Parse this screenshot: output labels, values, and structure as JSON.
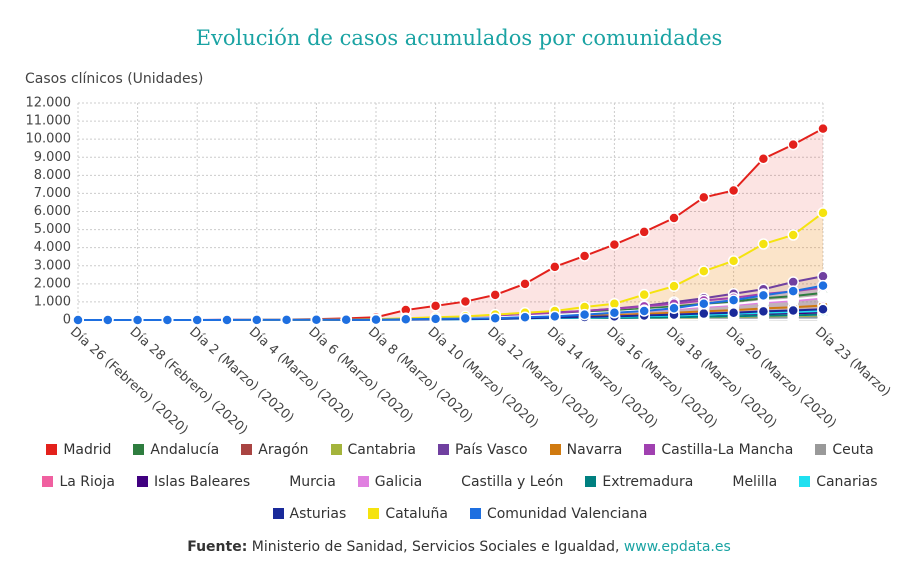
{
  "chart_data": {
    "type": "area",
    "title": "Evolución de casos acumulados por comunidades",
    "y_axis_label": "Casos clínicos (Unidades)",
    "categories": [
      "Día 26 (Febrero) (2020)",
      null,
      "Día 28 (Febrero) (2020)",
      null,
      "Día 2 (Marzo) (2020)",
      null,
      "Día 4 (Marzo) (2020)",
      null,
      "Día 6 (Marzo) (2020)",
      null,
      "Día 8 (Marzo) (2020)",
      null,
      "Día 10 (Marzo) (2020)",
      null,
      "Día 12 (Marzo) (2020)",
      null,
      "Día 14 (Marzo) (2020)",
      null,
      "Día 16 (Marzo) (2020)",
      null,
      "Día 18 (Marzo) (2020)",
      null,
      "Día 20 (Marzo) (2020)",
      null,
      null,
      "Día 23 (Marzo)"
    ],
    "ylim": [
      0,
      12000
    ],
    "yticks": [
      0,
      {
        "value": 1000,
        "label": "1.000"
      },
      {
        "value": 2000,
        "label": "2.000"
      },
      {
        "value": 3000,
        "label": "3.000"
      },
      {
        "value": 4000,
        "label": "4.000"
      },
      {
        "value": 5000,
        "label": "5.000"
      },
      {
        "value": 6000,
        "label": "6.000"
      },
      {
        "value": 7000,
        "label": "7.000"
      },
      {
        "value": 8000,
        "label": "8.000"
      },
      {
        "value": 9000,
        "label": "9.000"
      },
      {
        "value": 10000,
        "label": "10.000"
      },
      {
        "value": 11000,
        "label": "11.000"
      },
      {
        "value": 12000,
        "label": "12.000"
      }
    ],
    "grid": true,
    "series": [
      {
        "name": "Madrid",
        "color": "#e3211c",
        "values": [
          0,
          0,
          0,
          0,
          3,
          10,
          15,
          30,
          50,
          90,
          150,
          550,
          780,
          1020,
          1390,
          2000,
          2940,
          3540,
          4170,
          4870,
          5640,
          6780,
          7160,
          8920,
          9700,
          10580
        ]
      },
      {
        "name": "Andalucía",
        "color": "#2e7d3f",
        "values": [
          0,
          0,
          0,
          0,
          2,
          3,
          5,
          8,
          12,
          18,
          30,
          60,
          90,
          120,
          165,
          240,
          330,
          420,
          510,
          630,
          750,
          900,
          1020,
          1200,
          1320,
          1500
        ]
      },
      {
        "name": "Aragón",
        "color": "#a94442",
        "values": [
          0,
          0,
          0,
          0,
          1,
          1,
          2,
          3,
          4,
          6,
          10,
          20,
          30,
          40,
          55,
          80,
          110,
          140,
          170,
          210,
          250,
          300,
          340,
          400,
          440,
          500
        ]
      },
      {
        "name": "Cantabria",
        "color": "#a4b43c",
        "values": [
          0,
          0,
          0,
          0,
          0,
          1,
          1,
          1,
          2,
          3,
          5,
          10,
          15,
          20,
          28,
          40,
          55,
          70,
          85,
          105,
          125,
          150,
          170,
          200,
          220,
          250
        ]
      },
      {
        "name": "País Vasco",
        "color": "#7040a0",
        "values": [
          0,
          0,
          0,
          0,
          2,
          4,
          8,
          12,
          16,
          20,
          30,
          60,
          100,
          150,
          200,
          280,
          420,
          500,
          630,
          780,
          990,
          1200,
          1450,
          1700,
          2100,
          2420
        ]
      },
      {
        "name": "Navarra",
        "color": "#d07a10",
        "values": [
          0,
          0,
          0,
          0,
          1,
          2,
          2,
          4,
          6,
          10,
          16,
          32,
          48,
          64,
          88,
          128,
          176,
          224,
          272,
          336,
          400,
          480,
          544,
          640,
          704,
          800
        ]
      },
      {
        "name": "Castilla-La Mancha",
        "color": "#a040b0",
        "values": [
          0,
          0,
          0,
          0,
          2,
          4,
          5,
          9,
          14,
          22,
          36,
          72,
          108,
          144,
          198,
          288,
          396,
          504,
          612,
          756,
          900,
          1080,
          1224,
          1440,
          1584,
          1800
        ]
      },
      {
        "name": "Ceuta",
        "color": "#999999",
        "values": [
          0,
          0,
          0,
          0,
          0,
          0,
          0,
          0,
          0,
          0,
          0,
          0,
          0,
          0,
          1,
          1,
          2,
          2,
          3,
          4,
          5,
          6,
          7,
          8,
          9,
          10
        ]
      },
      {
        "name": "La Rioja",
        "color": "#f060a0",
        "values": [
          0,
          0,
          0,
          0,
          1,
          1,
          2,
          3,
          5,
          7,
          12,
          24,
          36,
          48,
          66,
          96,
          132,
          168,
          204,
          252,
          300,
          360,
          408,
          480,
          528,
          600
        ]
      },
      {
        "name": "Islas Baleares",
        "color": "#400080",
        "values": [
          0,
          0,
          0,
          0,
          0,
          1,
          1,
          2,
          3,
          5,
          8,
          16,
          24,
          32,
          44,
          64,
          88,
          112,
          136,
          168,
          200,
          240,
          272,
          320,
          352,
          400
        ]
      },
      {
        "name": "Murcia",
        "color": "#ffffff",
        "values": [
          0,
          0,
          0,
          0,
          0,
          1,
          1,
          2,
          2,
          4,
          6,
          12,
          18,
          24,
          33,
          48,
          66,
          84,
          102,
          126,
          150,
          180,
          204,
          240,
          264,
          300
        ]
      },
      {
        "name": "Galicia",
        "color": "#e080e0",
        "values": [
          0,
          0,
          0,
          0,
          1,
          2,
          4,
          6,
          10,
          14,
          24,
          48,
          72,
          96,
          132,
          192,
          264,
          336,
          408,
          504,
          600,
          720,
          816,
          960,
          1056,
          1200
        ]
      },
      {
        "name": "Castilla y León",
        "color": "#ffffff",
        "values": [
          0,
          0,
          0,
          0,
          1,
          3,
          4,
          7,
          10,
          16,
          26,
          52,
          78,
          104,
          143,
          208,
          286,
          364,
          442,
          546,
          650,
          780,
          884,
          1040,
          1144,
          1300
        ]
      },
      {
        "name": "Extremadura",
        "color": "#008080",
        "values": [
          0,
          0,
          0,
          0,
          0,
          1,
          1,
          1,
          2,
          3,
          6,
          12,
          18,
          24,
          33,
          48,
          66,
          84,
          102,
          126,
          150,
          180,
          204,
          240,
          264,
          300
        ]
      },
      {
        "name": "Melilla",
        "color": "#ffffff",
        "values": [
          0,
          0,
          0,
          0,
          0,
          0,
          0,
          0,
          0,
          0,
          0,
          0,
          0,
          1,
          1,
          2,
          3,
          4,
          5,
          7,
          9,
          11,
          13,
          15,
          18,
          20
        ]
      },
      {
        "name": "Canarias",
        "color": "#20e0f0",
        "values": [
          0,
          0,
          0,
          0,
          1,
          1,
          2,
          3,
          4,
          6,
          10,
          20,
          30,
          40,
          55,
          80,
          110,
          140,
          170,
          210,
          250,
          300,
          340,
          400,
          440,
          500
        ]
      },
      {
        "name": "Asturias",
        "color": "#1a2a9a",
        "values": [
          0,
          0,
          0,
          0,
          0,
          1,
          2,
          3,
          4,
          7,
          12,
          22,
          34,
          46,
          64,
          94,
          130,
          166,
          200,
          248,
          296,
          356,
          404,
          476,
          524,
          596
        ]
      },
      {
        "name": "Cataluña",
        "color": "#f5e30f",
        "values": [
          0,
          0,
          0,
          0,
          1,
          3,
          5,
          8,
          15,
          24,
          50,
          100,
          150,
          200,
          300,
          400,
          500,
          720,
          900,
          1400,
          1870,
          2700,
          3270,
          4200,
          4700,
          5925
        ]
      },
      {
        "name": "Comunidad Valenciana",
        "color": "#1e6fe0",
        "values": [
          0,
          0,
          0,
          0,
          1,
          3,
          5,
          8,
          12,
          15,
          20,
          40,
          60,
          80,
          100,
          150,
          200,
          300,
          400,
          500,
          650,
          900,
          1100,
          1360,
          1600,
          1900
        ]
      }
    ]
  },
  "source": {
    "label": "Fuente:",
    "text": "Ministerio de Sanidad, Servicios Sociales e Igualdad,",
    "link": "www.epdata.es"
  }
}
